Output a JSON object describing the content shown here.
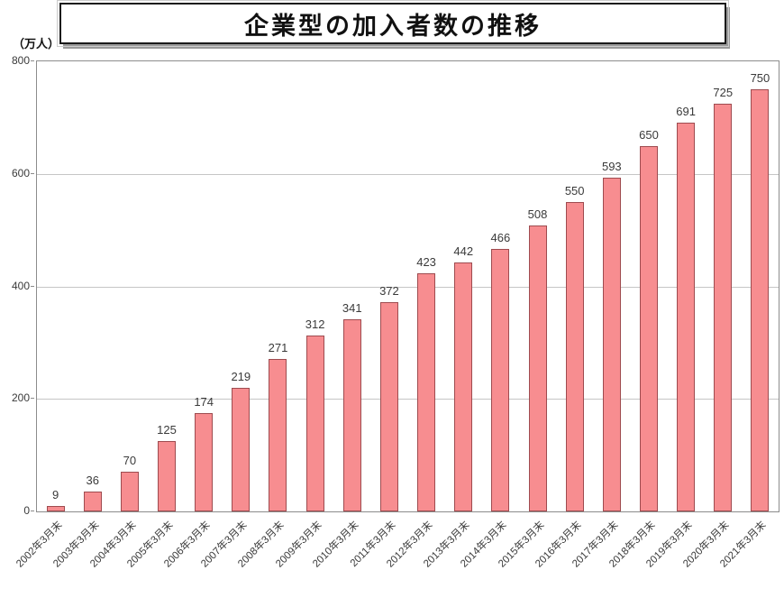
{
  "chart_data": {
    "type": "bar",
    "title": "企業型の加入者数の推移",
    "unit_label": "（万人）",
    "categories": [
      "2002年3月末",
      "2003年3月末",
      "2004年3月末",
      "2005年3月末",
      "2006年3月末",
      "2007年3月末",
      "2008年3月末",
      "2009年3月末",
      "2010年3月末",
      "2011年3月末",
      "2012年3月末",
      "2013年3月末",
      "2014年3月末",
      "2015年3月末",
      "2016年3月末",
      "2017年3月末",
      "2018年3月末",
      "2019年3月末",
      "2020年3月末",
      "2021年3月末"
    ],
    "values": [
      9,
      36,
      70,
      125,
      174,
      219,
      271,
      312,
      341,
      372,
      423,
      442,
      466,
      508,
      550,
      593,
      650,
      691,
      725,
      750
    ],
    "xlabel": "",
    "ylabel": "（万人）",
    "ylim": [
      0,
      800
    ],
    "yticks": [
      0,
      200,
      400,
      600,
      800
    ],
    "grid": "horizontal",
    "legend": "none",
    "colors": {
      "bar_fill": "#f78d90",
      "bar_border": "#9e4b4f",
      "gridline": "#c6c6c6",
      "plot_border": "#8c8c8c",
      "text": "#3a3a3a"
    }
  }
}
